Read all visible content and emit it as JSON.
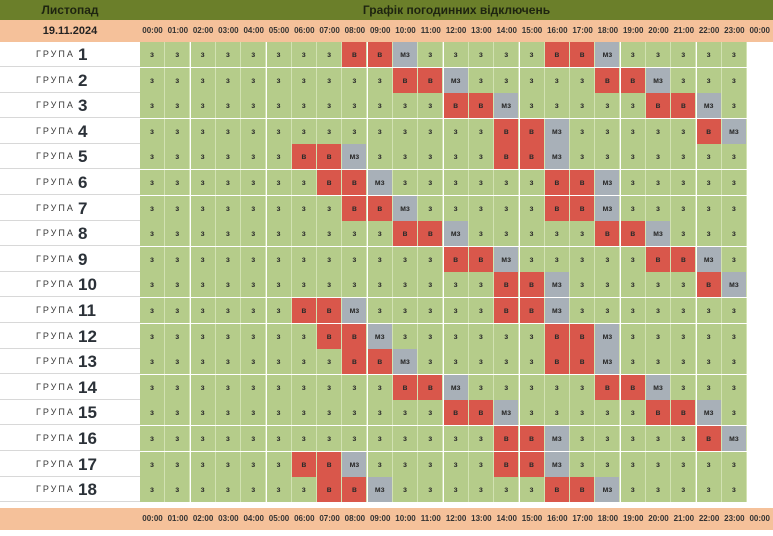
{
  "header": {
    "month": "Листопад",
    "title": "Графік погодинних відключень",
    "date": "19.11.2024"
  },
  "hours": [
    "00:00",
    "01:00",
    "02:00",
    "03:00",
    "04:00",
    "05:00",
    "06:00",
    "07:00",
    "08:00",
    "09:00",
    "10:00",
    "11:00",
    "12:00",
    "13:00",
    "14:00",
    "15:00",
    "16:00",
    "17:00",
    "18:00",
    "19:00",
    "20:00",
    "21:00",
    "22:00",
    "23:00",
    "00:00"
  ],
  "group_label": "ГРУПА",
  "status_colors": {
    "з": "#b5cc8a",
    "в": "#d9574b",
    "мз": "#a8b0b8"
  },
  "groups": [
    {
      "num": "1",
      "cells": [
        "з",
        "з",
        "з",
        "з",
        "з",
        "з",
        "з",
        "з",
        "в",
        "в",
        "мз",
        "з",
        "з",
        "з",
        "з",
        "з",
        "в",
        "в",
        "мз",
        "з",
        "з",
        "з",
        "з",
        "з"
      ]
    },
    {
      "num": "2",
      "cells": [
        "з",
        "з",
        "з",
        "з",
        "з",
        "з",
        "з",
        "з",
        "з",
        "з",
        "в",
        "в",
        "мз",
        "з",
        "з",
        "з",
        "з",
        "з",
        "в",
        "в",
        "мз",
        "з",
        "з",
        "з"
      ]
    },
    {
      "num": "3",
      "cells": [
        "з",
        "з",
        "з",
        "з",
        "з",
        "з",
        "з",
        "з",
        "з",
        "з",
        "з",
        "з",
        "в",
        "в",
        "мз",
        "з",
        "з",
        "з",
        "з",
        "з",
        "в",
        "в",
        "мз",
        "з"
      ]
    },
    {
      "num": "4",
      "cells": [
        "з",
        "з",
        "з",
        "з",
        "з",
        "з",
        "з",
        "з",
        "з",
        "з",
        "з",
        "з",
        "з",
        "з",
        "в",
        "в",
        "мз",
        "з",
        "з",
        "з",
        "з",
        "з",
        "в",
        "мз"
      ]
    },
    {
      "num": "5",
      "cells": [
        "з",
        "з",
        "з",
        "з",
        "з",
        "з",
        "в",
        "в",
        "мз",
        "з",
        "з",
        "з",
        "з",
        "з",
        "в",
        "в",
        "мз",
        "з",
        "з",
        "з",
        "з",
        "з",
        "з",
        "з"
      ]
    },
    {
      "num": "6",
      "cells": [
        "з",
        "з",
        "з",
        "з",
        "з",
        "з",
        "з",
        "в",
        "в",
        "мз",
        "з",
        "з",
        "з",
        "з",
        "з",
        "з",
        "в",
        "в",
        "мз",
        "з",
        "з",
        "з",
        "з",
        "з"
      ]
    },
    {
      "num": "7",
      "cells": [
        "з",
        "з",
        "з",
        "з",
        "з",
        "з",
        "з",
        "з",
        "в",
        "в",
        "мз",
        "з",
        "з",
        "з",
        "з",
        "з",
        "в",
        "в",
        "мз",
        "з",
        "з",
        "з",
        "з",
        "з"
      ]
    },
    {
      "num": "8",
      "cells": [
        "з",
        "з",
        "з",
        "з",
        "з",
        "з",
        "з",
        "з",
        "з",
        "з",
        "в",
        "в",
        "мз",
        "з",
        "з",
        "з",
        "з",
        "з",
        "в",
        "в",
        "мз",
        "з",
        "з",
        "з"
      ]
    },
    {
      "num": "9",
      "cells": [
        "з",
        "з",
        "з",
        "з",
        "з",
        "з",
        "з",
        "з",
        "з",
        "з",
        "з",
        "з",
        "в",
        "в",
        "мз",
        "з",
        "з",
        "з",
        "з",
        "з",
        "в",
        "в",
        "мз",
        "з"
      ]
    },
    {
      "num": "10",
      "cells": [
        "з",
        "з",
        "з",
        "з",
        "з",
        "з",
        "з",
        "з",
        "з",
        "з",
        "з",
        "з",
        "з",
        "з",
        "в",
        "в",
        "мз",
        "з",
        "з",
        "з",
        "з",
        "з",
        "в",
        "мз"
      ]
    },
    {
      "num": "11",
      "cells": [
        "з",
        "з",
        "з",
        "з",
        "з",
        "з",
        "в",
        "в",
        "мз",
        "з",
        "з",
        "з",
        "з",
        "з",
        "в",
        "в",
        "мз",
        "з",
        "з",
        "з",
        "з",
        "з",
        "з",
        "з"
      ]
    },
    {
      "num": "12",
      "cells": [
        "з",
        "з",
        "з",
        "з",
        "з",
        "з",
        "з",
        "в",
        "в",
        "мз",
        "з",
        "з",
        "з",
        "з",
        "з",
        "з",
        "в",
        "в",
        "мз",
        "з",
        "з",
        "з",
        "з",
        "з"
      ]
    },
    {
      "num": "13",
      "cells": [
        "з",
        "з",
        "з",
        "з",
        "з",
        "з",
        "з",
        "з",
        "в",
        "в",
        "мз",
        "з",
        "з",
        "з",
        "з",
        "з",
        "в",
        "в",
        "мз",
        "з",
        "з",
        "з",
        "з",
        "з"
      ]
    },
    {
      "num": "14",
      "cells": [
        "з",
        "з",
        "з",
        "з",
        "з",
        "з",
        "з",
        "з",
        "з",
        "з",
        "в",
        "в",
        "мз",
        "з",
        "з",
        "з",
        "з",
        "з",
        "в",
        "в",
        "мз",
        "з",
        "з",
        "з"
      ]
    },
    {
      "num": "15",
      "cells": [
        "з",
        "з",
        "з",
        "з",
        "з",
        "з",
        "з",
        "з",
        "з",
        "з",
        "з",
        "з",
        "в",
        "в",
        "мз",
        "з",
        "з",
        "з",
        "з",
        "з",
        "в",
        "в",
        "мз",
        "з"
      ]
    },
    {
      "num": "16",
      "cells": [
        "з",
        "з",
        "з",
        "з",
        "з",
        "з",
        "з",
        "з",
        "з",
        "з",
        "з",
        "з",
        "з",
        "з",
        "в",
        "в",
        "мз",
        "з",
        "з",
        "з",
        "з",
        "з",
        "в",
        "мз"
      ]
    },
    {
      "num": "17",
      "cells": [
        "з",
        "з",
        "з",
        "з",
        "з",
        "з",
        "в",
        "в",
        "мз",
        "з",
        "з",
        "з",
        "з",
        "з",
        "в",
        "в",
        "мз",
        "з",
        "з",
        "з",
        "з",
        "з",
        "з",
        "з"
      ]
    },
    {
      "num": "18",
      "cells": [
        "з",
        "з",
        "з",
        "з",
        "з",
        "з",
        "з",
        "в",
        "в",
        "мз",
        "з",
        "з",
        "з",
        "з",
        "з",
        "з",
        "в",
        "в",
        "мз",
        "з",
        "з",
        "з",
        "з",
        "з"
      ]
    }
  ]
}
